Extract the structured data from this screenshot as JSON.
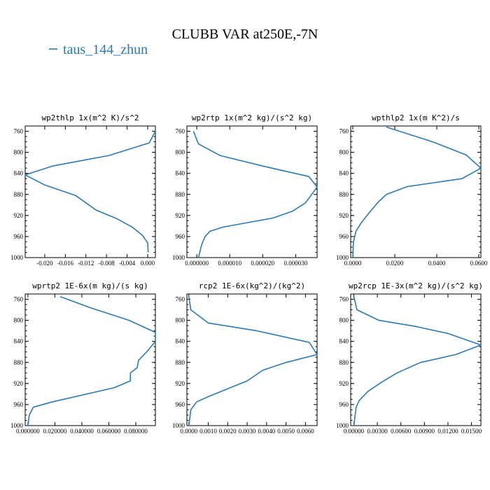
{
  "figure": {
    "title": "CLUBB VAR at250E,-7N",
    "legend": {
      "label": "taus_144_zhun",
      "color": "#2a7ab5"
    }
  },
  "chart_data": [
    {
      "type": "line",
      "title": "wp2thlp  1x(m^2 K)/s^2",
      "xlim": [
        -0.0238,
        0.0015
      ],
      "ylim": [
        1000,
        750
      ],
      "xticks": [
        -0.02,
        -0.016,
        -0.012,
        -0.008,
        -0.004,
        0.0
      ],
      "xtick_labels": [
        "-0.020",
        "-0.016",
        "-0.012",
        "-0.008",
        "-0.004",
        "0.000"
      ],
      "yticks": [
        760,
        800,
        840,
        880,
        920,
        960,
        1000
      ],
      "series": [
        {
          "color": "#2a7ab5",
          "x": [
            0.0015,
            0.0003,
            -0.0075,
            -0.0185,
            -0.0238,
            -0.02,
            -0.014,
            -0.01,
            -0.006,
            -0.003,
            -0.001,
            0.0,
            0.0001
          ],
          "y": [
            760,
            782,
            806,
            826,
            843,
            862,
            882,
            910,
            926,
            942,
            958,
            972,
            990
          ]
        }
      ]
    },
    {
      "type": "line",
      "title": "wp2rtp  1x(m^2 kg)/(s^2 kg)",
      "xlim": [
        -3e-06,
        3.65e-05
      ],
      "ylim": [
        1000,
        750
      ],
      "xticks": [
        0,
        1e-05,
        2e-05,
        3e-05
      ],
      "xtick_labels": [
        "0.000000",
        "0.000010",
        "0.000020",
        "0.000030"
      ],
      "yticks": [
        760,
        800,
        840,
        880,
        920,
        960,
        1000
      ],
      "series": [
        {
          "color": "#2a7ab5",
          "x": [
            -1e-06,
            5e-07,
            7e-06,
            2e-05,
            3.4e-05,
            3.65e-05,
            3.3e-05,
            2.9e-05,
            2.3e-05,
            1.5e-05,
            8e-06,
            4e-06,
            2.5e-06,
            1.5e-06,
            5e-07
          ],
          "y": [
            760,
            784,
            806,
            826,
            846,
            866,
            896,
            912,
            925,
            934,
            942,
            950,
            960,
            975,
            1000
          ]
        }
      ]
    },
    {
      "type": "line",
      "title": "wpthlp2  1x(m K^2)/s",
      "xlim": [
        -0.001,
        0.061
      ],
      "ylim": [
        1000,
        750
      ],
      "xticks": [
        0,
        0.02,
        0.04,
        0.06
      ],
      "xtick_labels": [
        "0.0000",
        "0.0200",
        "0.0400",
        "0.0600"
      ],
      "yticks": [
        760,
        800,
        840,
        880,
        920,
        960,
        1000
      ],
      "series": [
        {
          "color": "#2a7ab5",
          "x": [
            0.016,
            0.038,
            0.054,
            0.061,
            0.052,
            0.026,
            0.016,
            0.012,
            0.008,
            0.004,
            0.0015,
            0.0003,
            0.0
          ],
          "y": [
            752,
            780,
            805,
            830,
            850,
            865,
            880,
            895,
            914,
            934,
            950,
            970,
            1000
          ]
        }
      ]
    },
    {
      "type": "line",
      "title": "wprtp2  1E-6x(m kg)/(s kg)",
      "xlim": [
        -0.002,
        0.0945
      ],
      "ylim": [
        1000,
        750
      ],
      "xticks": [
        0,
        0.02,
        0.04,
        0.06,
        0.08
      ],
      "xtick_labels": [
        "0.000000",
        "0.020000",
        "0.040000",
        "0.060000",
        "0.080000"
      ],
      "yticks": [
        760,
        800,
        840,
        880,
        920,
        960,
        1000
      ],
      "series": [
        {
          "color": "#2a7ab5",
          "x": [
            0.024,
            0.045,
            0.075,
            0.0945,
            0.0945,
            0.088,
            0.082,
            0.081,
            0.076,
            0.076,
            0.064,
            0.018,
            0.004,
            0.001,
            0.0
          ],
          "y": [
            755,
            775,
            800,
            823,
            840,
            860,
            876,
            890,
            900,
            915,
            928,
            955,
            965,
            980,
            1000
          ]
        }
      ]
    },
    {
      "type": "line",
      "title": "rcp2  1E-6x(kg^2)/(kg^2)",
      "xlim": [
        -0.0001,
        0.0066
      ],
      "ylim": [
        1000,
        750
      ],
      "xticks": [
        0,
        0.001,
        0.002,
        0.003,
        0.004,
        0.005,
        0.006
      ],
      "xtick_labels": [
        "0.0000",
        "0.0010",
        "0.0020",
        "0.0030",
        "0.0040",
        "0.0050",
        "0.0060"
      ],
      "yticks": [
        760,
        800,
        840,
        880,
        920,
        960,
        1000
      ],
      "series": [
        {
          "color": "#2a7ab5",
          "x": [
            0.0,
            0.0001,
            0.001,
            0.0035,
            0.0062,
            0.0066,
            0.005,
            0.0038,
            0.003,
            0.002,
            0.001,
            0.0004,
            0.0001,
            0.0
          ],
          "y": [
            755,
            780,
            805,
            820,
            842,
            865,
            880,
            895,
            915,
            930,
            945,
            955,
            970,
            1000
          ]
        }
      ]
    },
    {
      "type": "line",
      "title": "wp2rcp  1E-3x(m^2 kg)/(s^2 kg)",
      "xlim": [
        -0.0004,
        0.0162
      ],
      "ylim": [
        1000,
        750
      ],
      "xticks": [
        0,
        0.003,
        0.006,
        0.009,
        0.012,
        0.015
      ],
      "xtick_labels": [
        "0.00000",
        "0.00300",
        "0.00600",
        "0.00900",
        "0.01200",
        "0.01500"
      ],
      "yticks": [
        760,
        800,
        840,
        880,
        920,
        960,
        1000
      ],
      "series": [
        {
          "color": "#2a7ab5",
          "x": [
            0.0,
            0.0004,
            0.0032,
            0.008,
            0.012,
            0.0162,
            0.013,
            0.0085,
            0.0055,
            0.0035,
            0.0018,
            0.0007,
            0.0003,
            0.0
          ],
          "y": [
            755,
            780,
            800,
            812,
            825,
            847,
            865,
            880,
            900,
            918,
            935,
            952,
            965,
            1000
          ]
        }
      ]
    }
  ]
}
